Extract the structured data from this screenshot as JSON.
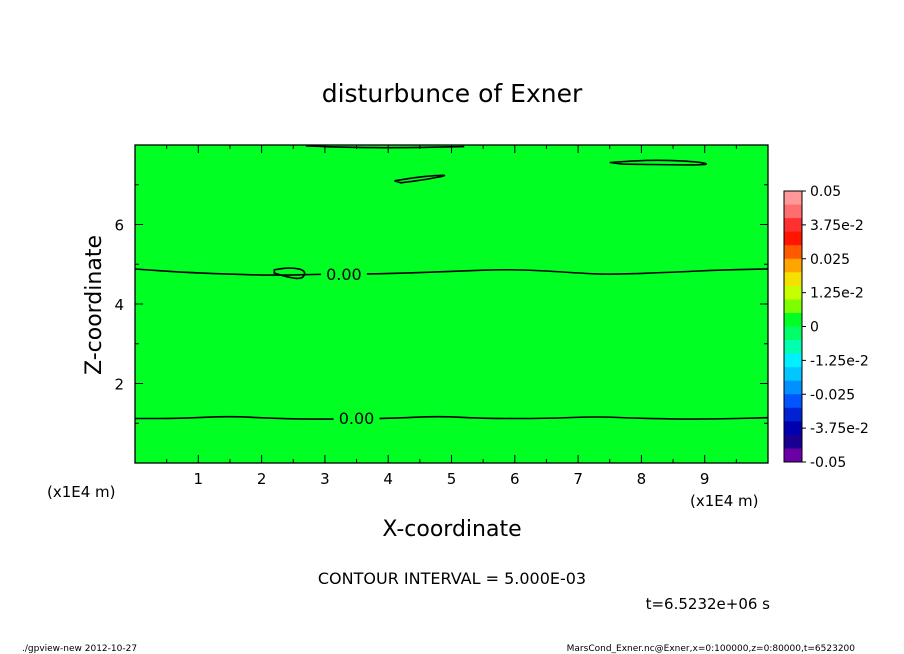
{
  "chart_data": {
    "type": "contour",
    "title": "disturbunce of Exner",
    "xlabel": "X-coordinate",
    "ylabel": "Z-coordinate",
    "x_unit": "(x1E4 m)",
    "y_unit": "(x1E4 m)",
    "xlim": [
      0,
      10
    ],
    "ylim": [
      0,
      8
    ],
    "x_ticks": [
      1,
      2,
      3,
      4,
      5,
      6,
      7,
      8,
      9
    ],
    "y_ticks": [
      2,
      4,
      6
    ],
    "fill_color": "#00ff22",
    "contour_interval_text": "CONTOUR INTERVAL = 5.000E-03",
    "time_text": "t=6.5232e+06 s",
    "contours": [
      {
        "label": "0.00",
        "label_at": [
          3.3,
          4.75
        ],
        "points": [
          [
            0,
            4.88
          ],
          [
            0.7,
            4.8
          ],
          [
            1.5,
            4.75
          ],
          [
            2.2,
            4.72
          ],
          [
            3.0,
            4.75
          ],
          [
            4.0,
            4.76
          ],
          [
            5.0,
            4.82
          ],
          [
            6.0,
            4.88
          ],
          [
            7.0,
            4.78
          ],
          [
            7.5,
            4.74
          ],
          [
            8.5,
            4.8
          ],
          [
            9.3,
            4.86
          ],
          [
            10,
            4.88
          ]
        ]
      },
      {
        "label": "0.00",
        "label_at": [
          3.5,
          1.13
        ],
        "points": [
          [
            0,
            1.12
          ],
          [
            0.7,
            1.12
          ],
          [
            1.5,
            1.18
          ],
          [
            2.2,
            1.12
          ],
          [
            3.0,
            1.1
          ],
          [
            4.0,
            1.12
          ],
          [
            4.8,
            1.18
          ],
          [
            5.5,
            1.12
          ],
          [
            6.5,
            1.12
          ],
          [
            7.3,
            1.17
          ],
          [
            8.0,
            1.12
          ],
          [
            9.0,
            1.1
          ],
          [
            10,
            1.14
          ]
        ]
      },
      {
        "label": "",
        "closed": true,
        "points": [
          [
            2.2,
            4.86
          ],
          [
            2.45,
            4.92
          ],
          [
            2.7,
            4.85
          ],
          [
            2.65,
            4.62
          ],
          [
            2.4,
            4.68
          ],
          [
            2.2,
            4.78
          ]
        ]
      },
      {
        "label": "",
        "closed": true,
        "points": [
          [
            4.1,
            7.1
          ],
          [
            4.5,
            7.2
          ],
          [
            5.0,
            7.26
          ],
          [
            4.6,
            7.13
          ],
          [
            4.2,
            7.05
          ]
        ]
      },
      {
        "label": "",
        "closed": true,
        "points": [
          [
            7.5,
            7.56
          ],
          [
            8.2,
            7.63
          ],
          [
            8.9,
            7.58
          ],
          [
            9.1,
            7.5
          ],
          [
            8.5,
            7.5
          ],
          [
            7.7,
            7.52
          ]
        ]
      },
      {
        "label": "",
        "closed": false,
        "points": [
          [
            2.7,
            7.98
          ],
          [
            3.3,
            7.94
          ],
          [
            4.2,
            7.93
          ],
          [
            5.2,
            7.96
          ]
        ]
      }
    ],
    "colorbar": {
      "labels": [
        "0.05",
        "3.75e-2",
        "0.025",
        "1.25e-2",
        "0",
        "-1.25e-2",
        "-0.025",
        "-3.75e-2",
        "-0.05"
      ],
      "colors": [
        "#ff9999",
        "#ff6e6e",
        "#ff3030",
        "#ff1500",
        "#ff5a00",
        "#ffa500",
        "#f5e100",
        "#c8ff00",
        "#7dff00",
        "#00ff22",
        "#00ff66",
        "#00ffb0",
        "#00f0ff",
        "#00c8ff",
        "#0090ff",
        "#0055ff",
        "#0022d0",
        "#0000b0",
        "#1a0090",
        "#6a00a6"
      ]
    }
  },
  "footer": {
    "left": "./gpview-new  2012-10-27",
    "right": "MarsCond_Exner.nc@Exner,x=0:100000,z=0:80000,t=6523200"
  }
}
